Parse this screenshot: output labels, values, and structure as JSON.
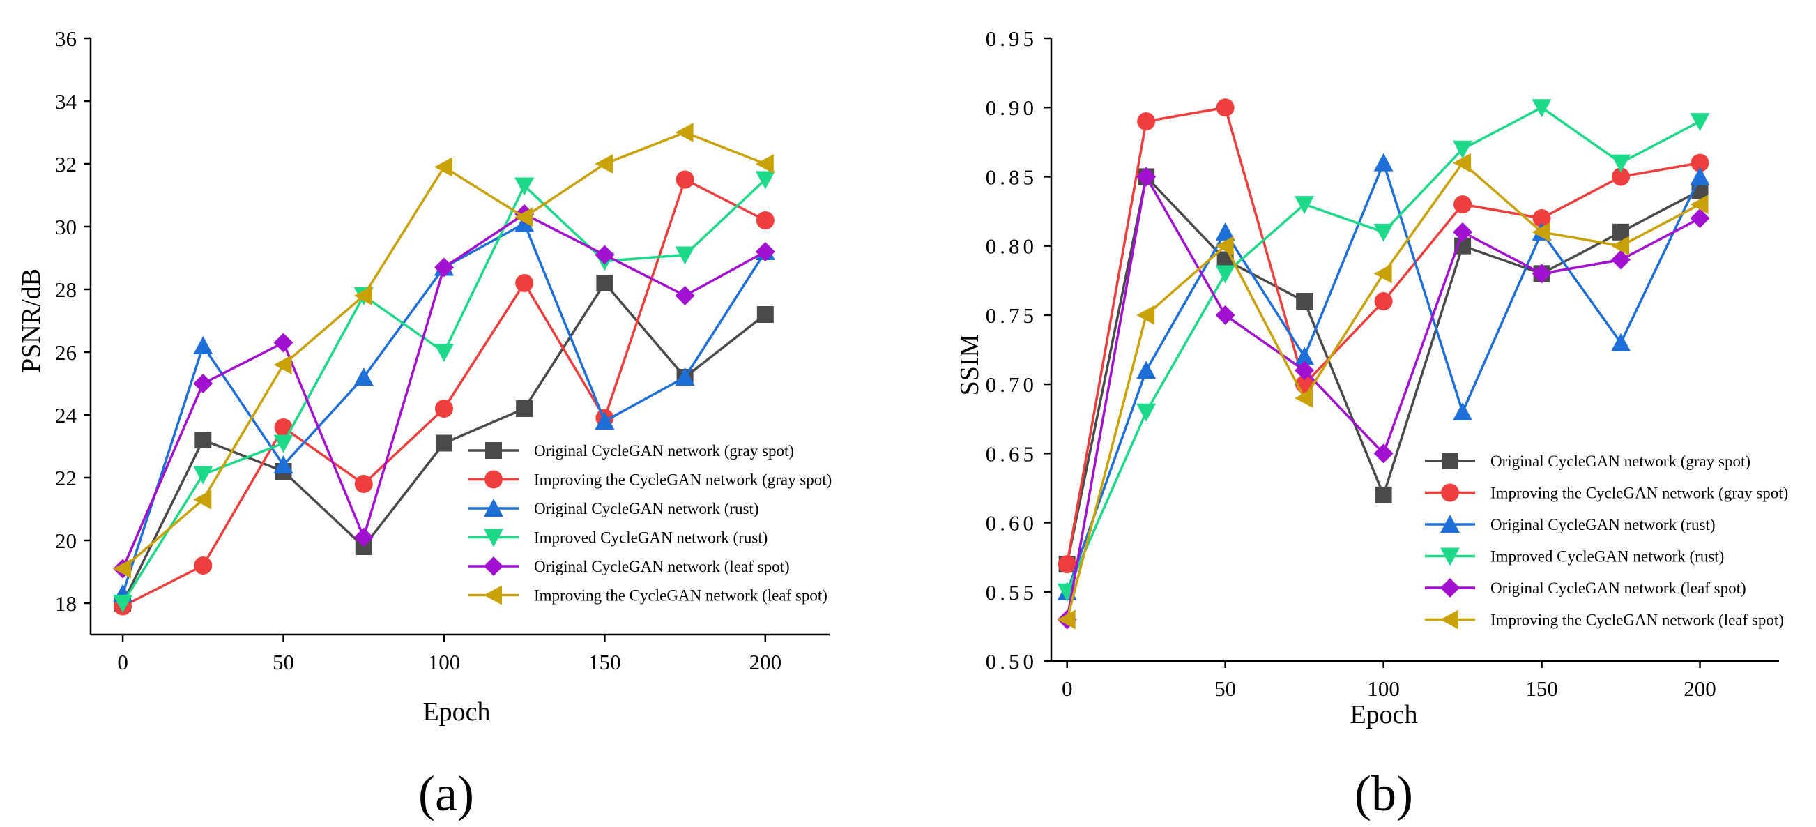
{
  "figure": {
    "panels": [
      "(a)",
      "(b)"
    ]
  },
  "chart_data": [
    {
      "type": "line",
      "panel_label": "(a)",
      "xlabel": "Epoch",
      "ylabel": "PSNR/dB",
      "xlim": [
        -10,
        220
      ],
      "ylim": [
        17,
        36
      ],
      "xticks": [
        0,
        50,
        100,
        150,
        200
      ],
      "yticks": [
        18,
        20,
        22,
        24,
        26,
        28,
        30,
        32,
        34,
        36
      ],
      "grid": false,
      "legend_position": "bottom-right",
      "x": [
        0,
        25,
        50,
        75,
        100,
        125,
        150,
        175,
        200
      ],
      "series": [
        {
          "name": "Original CycleGAN network (gray spot)",
          "color": "#4a4a4a",
          "marker": "square",
          "values": [
            18.0,
            23.2,
            22.2,
            19.8,
            23.1,
            24.2,
            28.2,
            25.2,
            27.2
          ]
        },
        {
          "name": "Improving the CycleGAN network (gray spot)",
          "color": "#ef3e3e",
          "marker": "circle",
          "values": [
            17.9,
            19.2,
            23.6,
            21.8,
            24.2,
            28.2,
            23.9,
            31.5,
            30.2
          ]
        },
        {
          "name": "Original CycleGAN network (rust)",
          "color": "#1e6fd8",
          "marker": "triangle-up",
          "values": [
            18.3,
            26.2,
            22.4,
            25.2,
            28.7,
            30.1,
            23.8,
            25.2,
            29.2
          ]
        },
        {
          "name": "Improved CycleGAN network (rust)",
          "color": "#1ed98a",
          "marker": "triangle-down",
          "values": [
            18.0,
            22.1,
            23.1,
            27.8,
            26.0,
            31.3,
            28.9,
            29.1,
            31.5
          ]
        },
        {
          "name": "Original CycleGAN network (leaf spot)",
          "color": "#a111cf",
          "marker": "diamond",
          "values": [
            19.1,
            25.0,
            26.3,
            20.1,
            28.7,
            30.4,
            29.1,
            27.8,
            29.2
          ]
        },
        {
          "name": "Improving the CycleGAN network (leaf spot)",
          "color": "#c9a207",
          "marker": "triangle-left",
          "values": [
            19.1,
            21.3,
            25.6,
            27.8,
            31.9,
            30.3,
            32.0,
            33.0,
            32.0
          ]
        }
      ]
    },
    {
      "type": "line",
      "panel_label": "(b)",
      "xlabel": "Epoch",
      "ylabel": "SSIM",
      "xlim": [
        -5,
        225
      ],
      "ylim": [
        0.5,
        0.95
      ],
      "xticks": [
        0,
        50,
        100,
        150,
        200
      ],
      "yticks": [
        "0.50",
        "0.55",
        "0.60",
        "0.65",
        "0.70",
        "0.75",
        "0.80",
        "0.85",
        "0.90",
        "0.95"
      ],
      "grid": false,
      "legend_position": "bottom-right",
      "x": [
        0,
        25,
        50,
        75,
        100,
        125,
        150,
        175,
        200
      ],
      "series": [
        {
          "name": "Original CycleGAN network (gray spot)",
          "color": "#4a4a4a",
          "marker": "square",
          "values": [
            0.57,
            0.85,
            0.79,
            0.76,
            0.62,
            0.8,
            0.78,
            0.81,
            0.84
          ]
        },
        {
          "name": "Improving the CycleGAN network (gray spot)",
          "color": "#ef3e3e",
          "marker": "circle",
          "values": [
            0.57,
            0.89,
            0.9,
            0.7,
            0.76,
            0.83,
            0.82,
            0.85,
            0.86
          ]
        },
        {
          "name": "Original CycleGAN network (rust)",
          "color": "#1e6fd8",
          "marker": "triangle-up",
          "values": [
            0.55,
            0.71,
            0.81,
            0.72,
            0.86,
            0.68,
            0.81,
            0.73,
            0.85
          ]
        },
        {
          "name": "Improved CycleGAN network (rust)",
          "color": "#1ed98a",
          "marker": "triangle-down",
          "values": [
            0.55,
            0.68,
            0.78,
            0.83,
            0.81,
            0.87,
            0.9,
            0.86,
            0.89
          ]
        },
        {
          "name": "Original CycleGAN network (leaf spot)",
          "color": "#a111cf",
          "marker": "diamond",
          "values": [
            0.53,
            0.85,
            0.75,
            0.71,
            0.65,
            0.81,
            0.78,
            0.79,
            0.82
          ]
        },
        {
          "name": "Improving the CycleGAN network (leaf spot)",
          "color": "#c9a207",
          "marker": "triangle-left",
          "values": [
            0.53,
            0.75,
            0.8,
            0.69,
            0.78,
            0.86,
            0.81,
            0.8,
            0.83
          ]
        }
      ]
    }
  ]
}
